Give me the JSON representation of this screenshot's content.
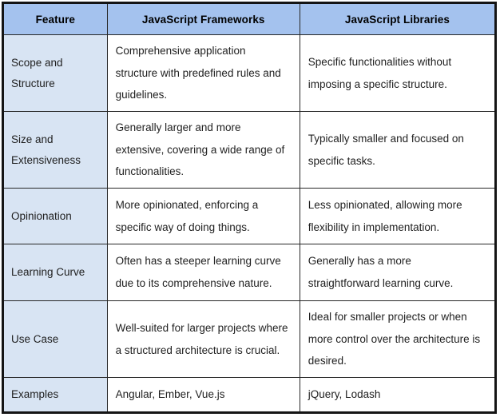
{
  "table": {
    "headers": {
      "feature": "Feature",
      "frameworks": "JavaScript Frameworks",
      "libraries": "JavaScript Libraries"
    },
    "rows": [
      {
        "feature": "Scope and Structure",
        "frameworks": "Comprehensive application structure with predefined rules and guidelines.",
        "libraries": "Specific functionalities without imposing a specific structure."
      },
      {
        "feature": "Size and Extensiveness",
        "frameworks": "Generally larger and more extensive, covering a wide range of functionalities.",
        "libraries": "Typically smaller and focused on specific tasks."
      },
      {
        "feature": "Opinionation",
        "frameworks": "More opinionated, enforcing a specific way of doing things.",
        "libraries": "Less opinionated, allowing more flexibility in implementation."
      },
      {
        "feature": "Learning Curve",
        "frameworks": "Often has a steeper learning curve due to its comprehensive nature.",
        "libraries": "Generally has a more straightforward learning curve."
      },
      {
        "feature": "Use Case",
        "frameworks": "Well-suited for larger projects where a structured architecture is crucial.",
        "libraries": "Ideal for smaller projects or when more control over the architecture is desired."
      },
      {
        "feature": "Examples",
        "frameworks": "Angular, Ember, Vue.js",
        "libraries": "jQuery, Lodash"
      }
    ]
  },
  "colors": {
    "header_background": "#a4c2ee",
    "feature_column_background": "#d8e4f3",
    "border": "#272727",
    "outer_border": "#141414",
    "text": "#1f1f1f"
  }
}
